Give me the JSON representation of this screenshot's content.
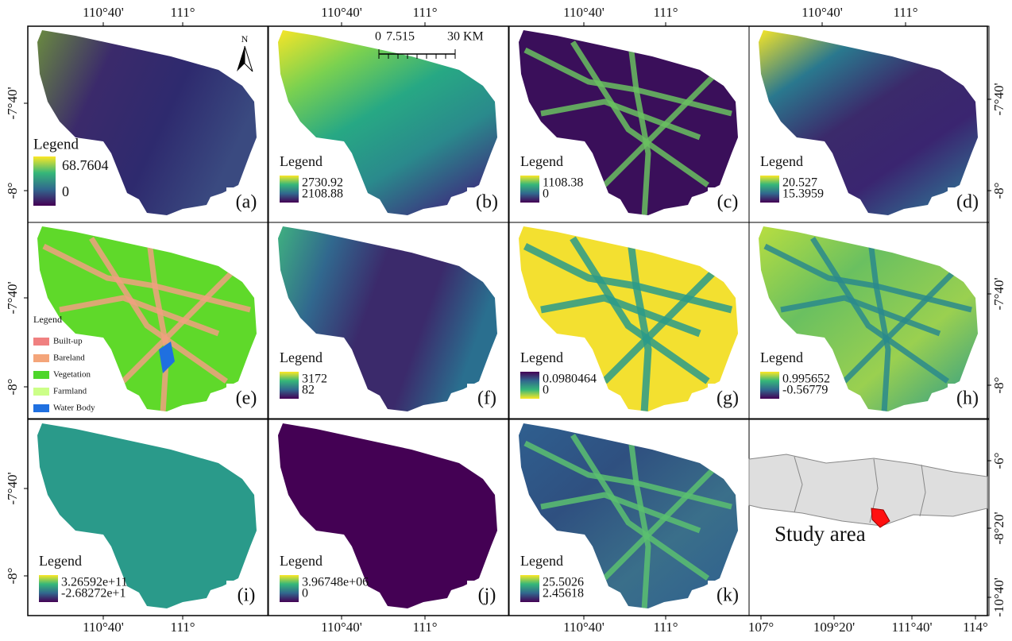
{
  "panels": [
    {
      "label": "(a)",
      "legend_title": "Legend",
      "max": "68.7604",
      "min": "0"
    },
    {
      "label": "(b)",
      "legend_title": "Legend",
      "max": "2730.92",
      "min": "2108.88"
    },
    {
      "label": "(c)",
      "legend_title": "Legend",
      "max": "1108.38",
      "min": "0"
    },
    {
      "label": "(d)",
      "legend_title": "Legend",
      "max": "20.527",
      "min": "15.3959"
    },
    {
      "label": "(e)",
      "legend_title": "Legend",
      "classes": [
        {
          "name": "Built-up",
          "color": "#f08080"
        },
        {
          "name": "Bareland",
          "color": "#f4a57a"
        },
        {
          "name": "Vegetation",
          "color": "#4dd62a"
        },
        {
          "name": "Farmland",
          "color": "#ccff88"
        },
        {
          "name": "Water Body",
          "color": "#1f70e0"
        }
      ]
    },
    {
      "label": "(f)",
      "legend_title": "Legend",
      "max": "3172",
      "min": "82"
    },
    {
      "label": "(g)",
      "legend_title": "Legend",
      "max": "0.0980464",
      "min": "0"
    },
    {
      "label": "(h)",
      "legend_title": "Legend",
      "max": "0.995652",
      "min": "-0.56779"
    },
    {
      "label": "(i)",
      "legend_title": "Legend",
      "max": "3.26592e+11",
      "min": "-2.68272e+1"
    },
    {
      "label": "(j)",
      "legend_title": "Legend",
      "max": "3.96748e+06",
      "min": "0"
    },
    {
      "label": "(k)",
      "legend_title": "Legend",
      "max": "25.5026",
      "min": "2.45618"
    }
  ],
  "top_labels": [
    [
      "110°40'",
      "111°"
    ],
    [
      "110°40'",
      "111°"
    ],
    [
      "110°40'",
      "111°"
    ],
    [
      "110°40'",
      "111°"
    ]
  ],
  "bottom_labels": [
    [
      "110°40'",
      "111°"
    ],
    [
      "110°40'",
      "111°"
    ],
    [
      "110°40'",
      "111°"
    ],
    [
      "107°",
      "109°20'",
      "111°40'",
      "114°"
    ]
  ],
  "left_labels": [
    [
      "-7°40'",
      "-8°"
    ],
    [
      "-7°40'",
      "-8°"
    ],
    [
      "-7°40'",
      "-8°"
    ]
  ],
  "right_labels": [
    [
      "-7°40'",
      "-8°"
    ],
    [
      "-7°40'",
      "-8°"
    ],
    [
      "-6°",
      "-8°20'",
      "-10°40'"
    ]
  ],
  "scale_bar": [
    "0",
    "7.515",
    "30 KM"
  ],
  "north": "N",
  "inset_text": "Study area"
}
